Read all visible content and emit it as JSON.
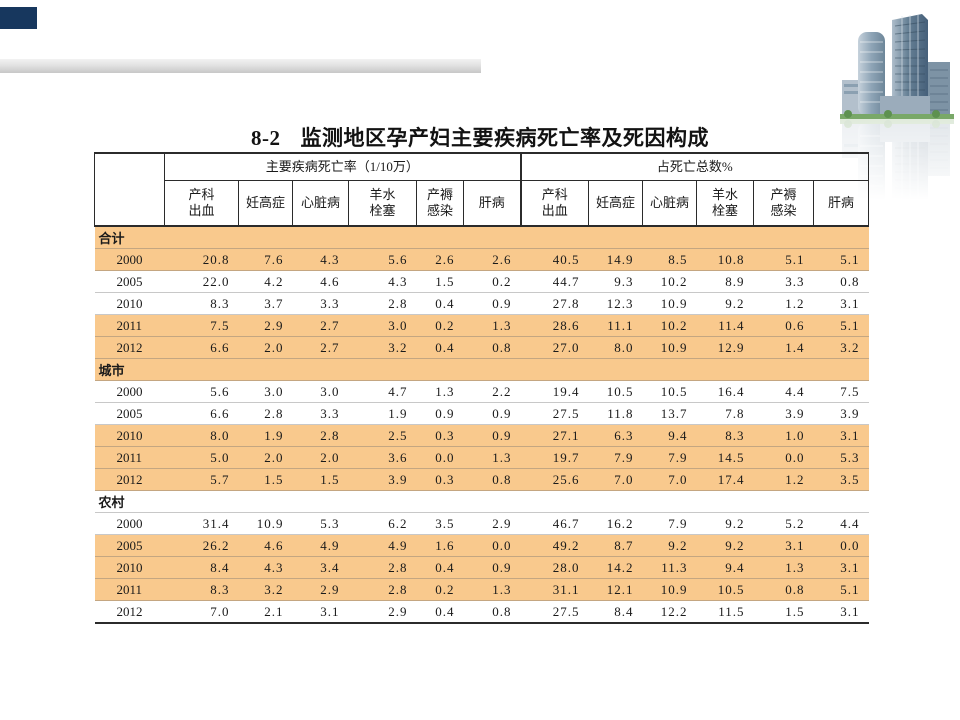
{
  "slide": {
    "title_number": "8-2",
    "title_text": "监测地区孕产妇主要疾病死亡率及死因构成"
  },
  "decor": {
    "navy_box_color": "#17375E",
    "band_color": "#F9C98D",
    "building_icon": "city-buildings-with-reflection"
  },
  "table": {
    "group_headers": [
      "主要疾病死亡率（1/10万）",
      "占死亡总数%"
    ],
    "column_headers": [
      "产科\n出血",
      "妊高症",
      "心脏病",
      "羊水\n栓塞",
      "产褥\n感染",
      "肝病",
      "产科\n出血",
      "妊高症",
      "心脏病",
      "羊水\n栓塞",
      "产褥\n感染",
      "肝病"
    ],
    "rows": [
      {
        "label": "合计",
        "type": "section",
        "shaded": true,
        "values": []
      },
      {
        "label": "2000",
        "type": "year",
        "shaded": true,
        "values": [
          "20.8",
          "7.6",
          "4.3",
          "5.6",
          "2.6",
          "2.6",
          "40.5",
          "14.9",
          "8.5",
          "10.8",
          "5.1",
          "5.1"
        ]
      },
      {
        "label": "2005",
        "type": "year",
        "shaded": false,
        "values": [
          "22.0",
          "4.2",
          "4.6",
          "4.3",
          "1.5",
          "0.2",
          "44.7",
          "9.3",
          "10.2",
          "8.9",
          "3.3",
          "0.8"
        ]
      },
      {
        "label": "2010",
        "type": "year",
        "shaded": false,
        "values": [
          "8.3",
          "3.7",
          "3.3",
          "2.8",
          "0.4",
          "0.9",
          "27.8",
          "12.3",
          "10.9",
          "9.2",
          "1.2",
          "3.1"
        ]
      },
      {
        "label": "2011",
        "type": "year",
        "shaded": true,
        "values": [
          "7.5",
          "2.9",
          "2.7",
          "3.0",
          "0.2",
          "1.3",
          "28.6",
          "11.1",
          "10.2",
          "11.4",
          "0.6",
          "5.1"
        ]
      },
      {
        "label": "2012",
        "type": "year",
        "shaded": true,
        "values": [
          "6.6",
          "2.0",
          "2.7",
          "3.2",
          "0.4",
          "0.8",
          "27.0",
          "8.0",
          "10.9",
          "12.9",
          "1.4",
          "3.2"
        ]
      },
      {
        "label": "城市",
        "type": "section",
        "shaded": true,
        "values": []
      },
      {
        "label": "2000",
        "type": "year",
        "shaded": false,
        "values": [
          "5.6",
          "3.0",
          "3.0",
          "4.7",
          "1.3",
          "2.2",
          "19.4",
          "10.5",
          "10.5",
          "16.4",
          "4.4",
          "7.5"
        ]
      },
      {
        "label": "2005",
        "type": "year",
        "shaded": false,
        "values": [
          "6.6",
          "2.8",
          "3.3",
          "1.9",
          "0.9",
          "0.9",
          "27.5",
          "11.8",
          "13.7",
          "7.8",
          "3.9",
          "3.9"
        ]
      },
      {
        "label": "2010",
        "type": "year",
        "shaded": true,
        "values": [
          "8.0",
          "1.9",
          "2.8",
          "2.5",
          "0.3",
          "0.9",
          "27.1",
          "6.3",
          "9.4",
          "8.3",
          "1.0",
          "3.1"
        ]
      },
      {
        "label": "2011",
        "type": "year",
        "shaded": true,
        "values": [
          "5.0",
          "2.0",
          "2.0",
          "3.6",
          "0.0",
          "1.3",
          "19.7",
          "7.9",
          "7.9",
          "14.5",
          "0.0",
          "5.3"
        ]
      },
      {
        "label": "2012",
        "type": "year",
        "shaded": true,
        "values": [
          "5.7",
          "1.5",
          "1.5",
          "3.9",
          "0.3",
          "0.8",
          "25.6",
          "7.0",
          "7.0",
          "17.4",
          "1.2",
          "3.5"
        ]
      },
      {
        "label": "农村",
        "type": "section",
        "shaded": false,
        "values": []
      },
      {
        "label": "2000",
        "type": "year",
        "shaded": false,
        "values": [
          "31.4",
          "10.9",
          "5.3",
          "6.2",
          "3.5",
          "2.9",
          "46.7",
          "16.2",
          "7.9",
          "9.2",
          "5.2",
          "4.4"
        ]
      },
      {
        "label": "2005",
        "type": "year",
        "shaded": true,
        "values": [
          "26.2",
          "4.6",
          "4.9",
          "4.9",
          "1.6",
          "0.0",
          "49.2",
          "8.7",
          "9.2",
          "9.2",
          "3.1",
          "0.0"
        ]
      },
      {
        "label": "2010",
        "type": "year",
        "shaded": true,
        "values": [
          "8.4",
          "4.3",
          "3.4",
          "2.8",
          "0.4",
          "0.9",
          "28.0",
          "14.2",
          "11.3",
          "9.4",
          "1.3",
          "3.1"
        ]
      },
      {
        "label": "2011",
        "type": "year",
        "shaded": true,
        "values": [
          "8.3",
          "3.2",
          "2.9",
          "2.8",
          "0.2",
          "1.3",
          "31.1",
          "12.1",
          "10.9",
          "10.5",
          "0.8",
          "5.1"
        ]
      },
      {
        "label": "2012",
        "type": "year",
        "shaded": false,
        "values": [
          "7.0",
          "2.1",
          "3.1",
          "2.9",
          "0.4",
          "0.8",
          "27.5",
          "8.4",
          "12.2",
          "11.5",
          "1.5",
          "3.1"
        ]
      }
    ]
  }
}
